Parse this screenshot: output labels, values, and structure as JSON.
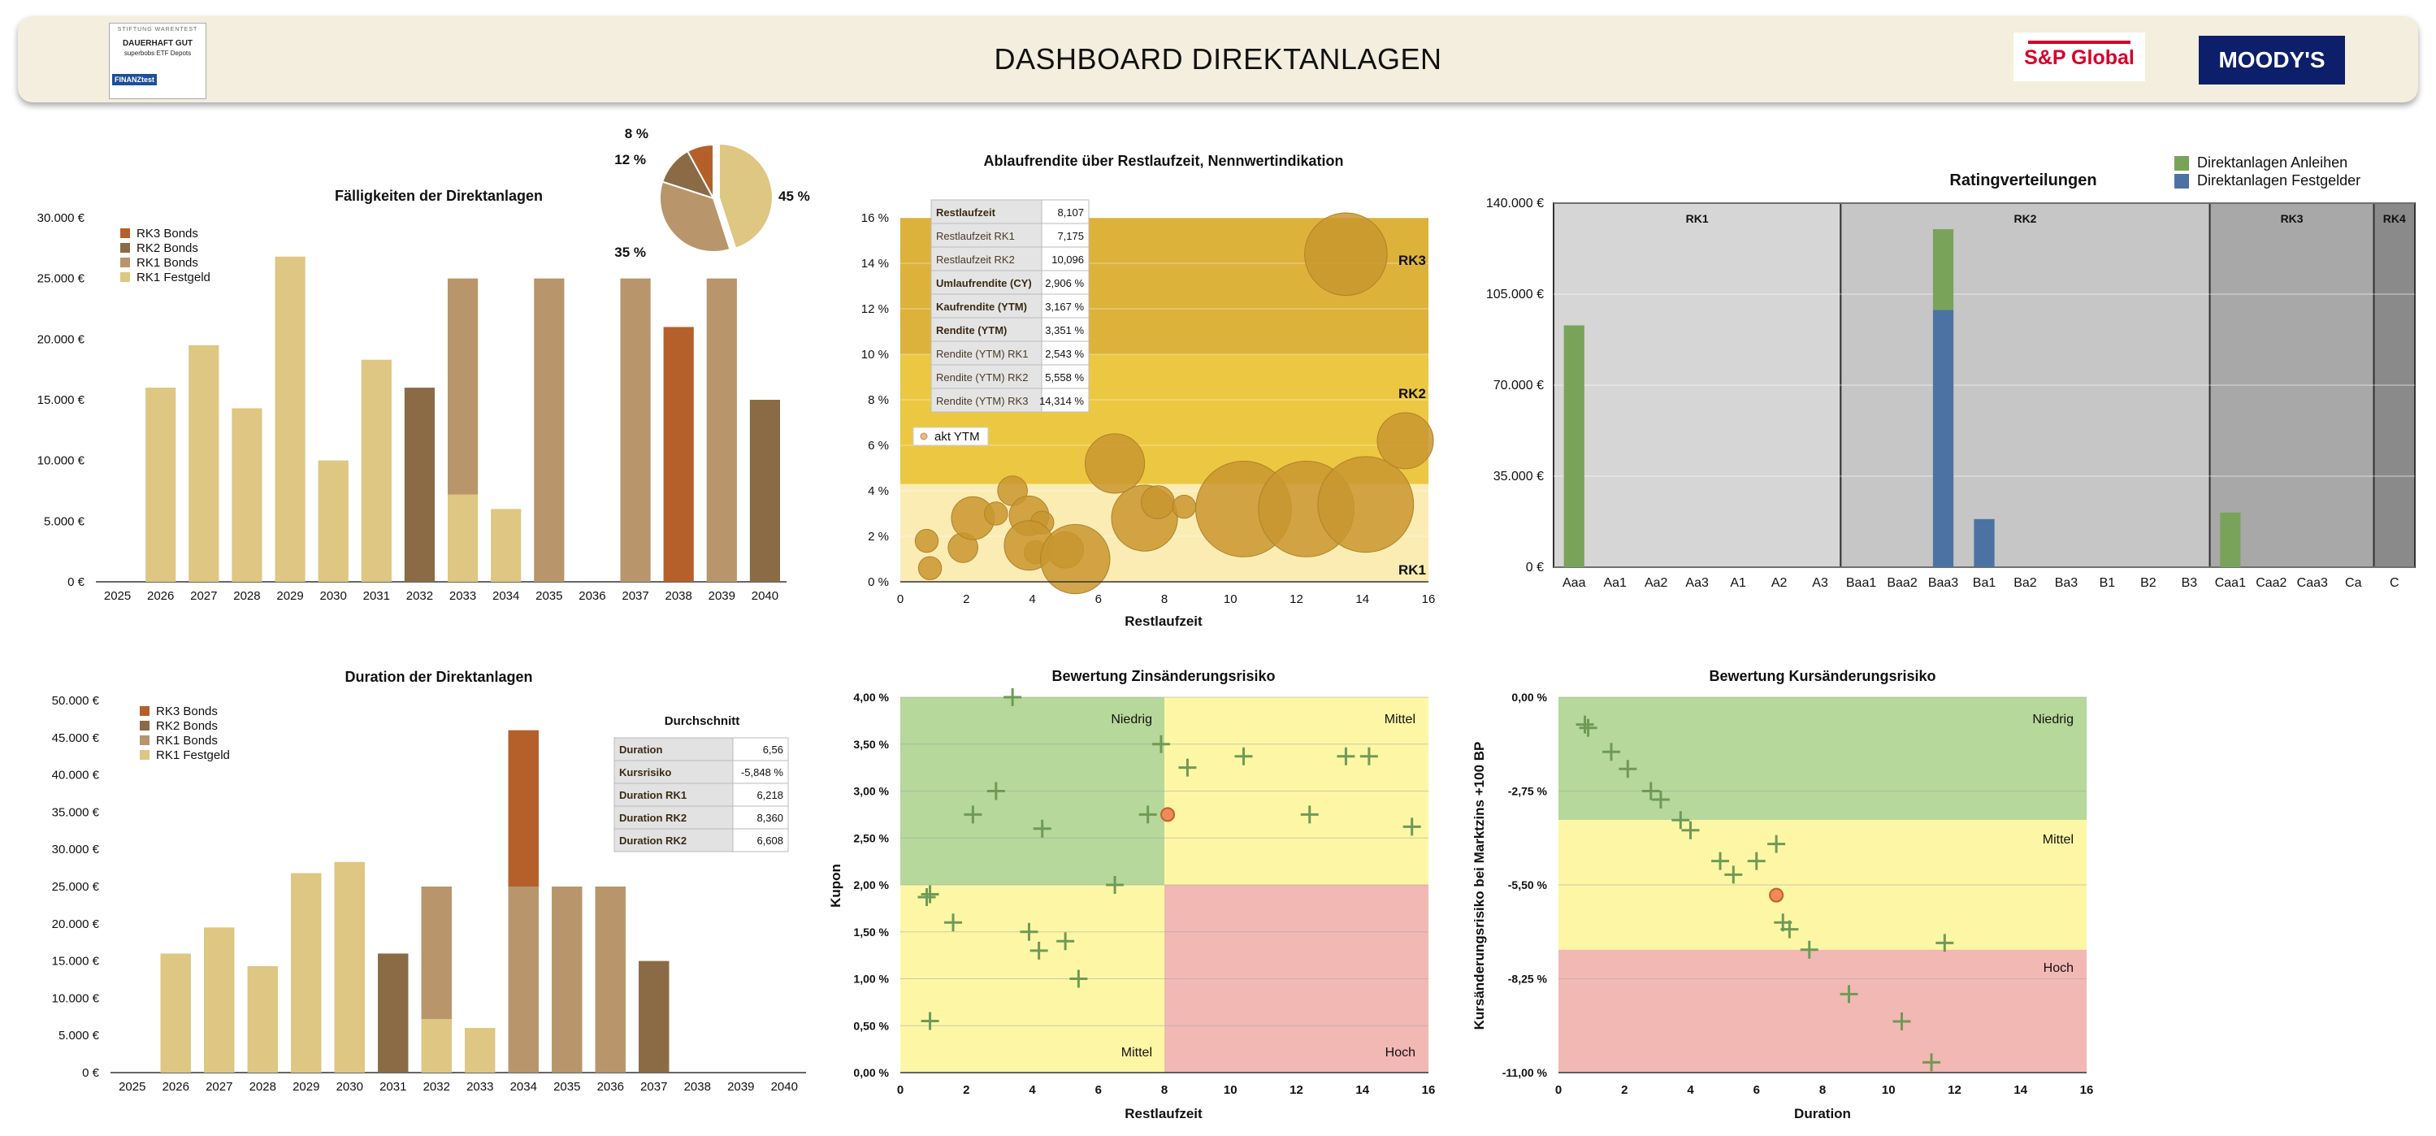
{
  "header": {
    "title": "DASHBOARD DIREKTANLAGEN",
    "logo_left": {
      "line1": "STIFTUNG WARENTEST",
      "line2": "DAUERHAFT GUT",
      "line3": "superbobs ETF Depots",
      "badge": "FINANZtest"
    },
    "logo_sp": "S&P Global",
    "logo_moodys": "MOODY'S"
  },
  "colors": {
    "rk3_bonds": "#b5602a",
    "rk2_bonds": "#8b6b45",
    "rk1_bonds": "#b8956a",
    "rk1_festgeld": "#dec683",
    "green": "#7aa35a",
    "blue": "#4b72a2",
    "zone_green": "#b6d89a",
    "zone_yellow": "#fdf7a5",
    "zone_red": "#f2b8b4"
  },
  "chart_data": [
    {
      "type": "bar",
      "title": "Fälligkeiten der Direktanlagen",
      "categories": [
        "2025",
        "2026",
        "2027",
        "2028",
        "2029",
        "2030",
        "2031",
        "2032",
        "2033",
        "2034",
        "2035",
        "2036",
        "2037",
        "2038",
        "2039",
        "2040"
      ],
      "series": [
        {
          "name": "RK1 Festgeld",
          "values": [
            0,
            16000,
            19500,
            14300,
            26800,
            10000,
            18300,
            0,
            7200,
            6000,
            0,
            0,
            0,
            0,
            0,
            0
          ]
        },
        {
          "name": "RK1 Bonds",
          "values": [
            0,
            0,
            0,
            0,
            0,
            0,
            0,
            0,
            17800,
            0,
            25000,
            0,
            25000,
            0,
            25000,
            0
          ]
        },
        {
          "name": "RK2 Bonds",
          "values": [
            0,
            0,
            0,
            0,
            0,
            0,
            0,
            16000,
            0,
            0,
            0,
            0,
            0,
            0,
            0,
            15000
          ]
        },
        {
          "name": "RK3 Bonds",
          "values": [
            0,
            0,
            0,
            0,
            0,
            0,
            0,
            0,
            0,
            0,
            0,
            0,
            0,
            21000,
            0,
            0
          ]
        }
      ],
      "legend": [
        "RK3 Bonds",
        "RK2 Bonds",
        "RK1 Bonds",
        "RK1 Festgeld"
      ],
      "ylim": [
        0,
        30000
      ],
      "yticks": [
        "0 €",
        "5.000 €",
        "10.000 €",
        "15.000 €",
        "20.000 €",
        "25.000 €",
        "30.000 €"
      ],
      "pie": {
        "values": [
          45,
          35,
          12,
          8
        ],
        "labels": [
          "45 %",
          "35 %",
          "12 %",
          "8 %"
        ]
      }
    },
    {
      "type": "scatter",
      "title": "Ablaufrendite über Restlaufzeit, Nennwertindikation",
      "xlabel": "Restlaufzeit",
      "xlim": [
        0,
        16
      ],
      "ylim": [
        0,
        16
      ],
      "xticks": [
        "0",
        "2",
        "4",
        "6",
        "8",
        "10",
        "12",
        "14",
        "16"
      ],
      "yticks": [
        "0 %",
        "2 %",
        "4 %",
        "6 %",
        "8 %",
        "10 %",
        "12 %",
        "14 %",
        "16 %"
      ],
      "bands": [
        {
          "label": "RK1",
          "from": 0,
          "to": 4.3
        },
        {
          "label": "RK2",
          "from": 4.3,
          "to": 10
        },
        {
          "label": "RK3",
          "from": 10,
          "to": 16
        }
      ],
      "bubbles": [
        {
          "x": 0.8,
          "y": 1.8,
          "s": 0.35
        },
        {
          "x": 0.9,
          "y": 0.6,
          "s": 0.35
        },
        {
          "x": 1.9,
          "y": 1.5,
          "s": 0.45
        },
        {
          "x": 2.2,
          "y": 2.8,
          "s": 0.65
        },
        {
          "x": 2.9,
          "y": 3.0,
          "s": 0.35
        },
        {
          "x": 3.4,
          "y": 4.0,
          "s": 0.45
        },
        {
          "x": 3.9,
          "y": 2.9,
          "s": 0.6
        },
        {
          "x": 4.1,
          "y": 1.3,
          "s": 0.35
        },
        {
          "x": 4.3,
          "y": 2.6,
          "s": 0.35
        },
        {
          "x": 3.9,
          "y": 1.6,
          "s": 0.75
        },
        {
          "x": 5.0,
          "y": 1.4,
          "s": 0.55
        },
        {
          "x": 5.3,
          "y": 1.0,
          "s": 1.05
        },
        {
          "x": 6.5,
          "y": 5.2,
          "s": 0.9
        },
        {
          "x": 7.4,
          "y": 2.8,
          "s": 1.0
        },
        {
          "x": 7.8,
          "y": 3.5,
          "s": 0.5
        },
        {
          "x": 8.6,
          "y": 3.3,
          "s": 0.35
        },
        {
          "x": 10.4,
          "y": 3.2,
          "s": 1.45
        },
        {
          "x": 12.3,
          "y": 3.2,
          "s": 1.45
        },
        {
          "x": 14.1,
          "y": 3.4,
          "s": 1.45
        },
        {
          "x": 15.3,
          "y": 6.2,
          "s": 0.85
        },
        {
          "x": 13.5,
          "y": 14.4,
          "s": 1.25
        }
      ],
      "akt_ytm": {
        "x": 8.1,
        "y": 3.35,
        "label": "akt YTM"
      },
      "info_table": [
        [
          "Restlaufzeit",
          "8,107"
        ],
        [
          "Restlaufzeit RK1",
          "7,175"
        ],
        [
          "Restlaufzeit RK2",
          "10,096"
        ],
        [
          "Umlaufrendite (CY)",
          "2,906 %"
        ],
        [
          "Kaufrendite (YTM)",
          "3,167 %"
        ],
        [
          "Rendite (YTM)",
          "3,351 %"
        ],
        [
          "Rendite (YTM) RK1",
          "2,543 %"
        ],
        [
          "Rendite (YTM) RK2",
          "5,558 %"
        ],
        [
          "Rendite (YTM) RK3",
          "14,314 %"
        ]
      ]
    },
    {
      "type": "bar",
      "title": "Ratingverteilungen",
      "categories": [
        "Aaa",
        "Aa1",
        "Aa2",
        "Aa3",
        "A1",
        "A2",
        "A3",
        "Baa1",
        "Baa2",
        "Baa3",
        "Ba1",
        "Ba2",
        "Ba3",
        "B1",
        "B2",
        "B3",
        "Caa1",
        "Caa2",
        "Caa3",
        "Ca",
        "C"
      ],
      "series": [
        {
          "name": "Direktanlagen Festgelder",
          "values": [
            0,
            0,
            0,
            0,
            0,
            0,
            0,
            0,
            0,
            99000,
            18500,
            0,
            0,
            0,
            0,
            0,
            0,
            0,
            0,
            0,
            0
          ]
        },
        {
          "name": "Direktanlagen Anleihen",
          "values": [
            93000,
            0,
            0,
            0,
            0,
            0,
            0,
            0,
            0,
            31000,
            0,
            0,
            0,
            0,
            0,
            0,
            21000,
            0,
            0,
            0,
            0
          ]
        }
      ],
      "groups": [
        {
          "label": "RK1",
          "from": 0,
          "to": 6
        },
        {
          "label": "RK2",
          "from": 7,
          "to": 15
        },
        {
          "label": "RK3",
          "from": 16,
          "to": 19
        },
        {
          "label": "RK4",
          "from": 20,
          "to": 20
        }
      ],
      "ylim": [
        0,
        140000
      ],
      "yticks": [
        "0 €",
        "35.000 €",
        "70.000 €",
        "105.000 €",
        "140.000 €"
      ],
      "legend": [
        "Direktanlagen Anleihen",
        "Direktanlagen Festgelder"
      ]
    },
    {
      "type": "bar",
      "title": "Duration der Direktanlagen",
      "categories": [
        "2025",
        "2026",
        "2027",
        "2028",
        "2029",
        "2030",
        "2031",
        "2032",
        "2033",
        "2034",
        "2035",
        "2036",
        "2037",
        "2038",
        "2039",
        "2040"
      ],
      "series": [
        {
          "name": "RK1 Festgeld",
          "values": [
            0,
            16000,
            19500,
            14300,
            26800,
            28300,
            0,
            7200,
            6000,
            0,
            0,
            0,
            0,
            0,
            0,
            0
          ]
        },
        {
          "name": "RK1 Bonds",
          "values": [
            0,
            0,
            0,
            0,
            0,
            0,
            0,
            17800,
            0,
            25000,
            25000,
            25000,
            0,
            0,
            0,
            0
          ]
        },
        {
          "name": "RK2 Bonds",
          "values": [
            0,
            0,
            0,
            0,
            0,
            0,
            16000,
            0,
            0,
            0,
            0,
            0,
            15000,
            0,
            0,
            0
          ]
        },
        {
          "name": "RK3 Bonds",
          "values": [
            0,
            0,
            0,
            0,
            0,
            0,
            0,
            0,
            0,
            21000,
            0,
            0,
            0,
            0,
            0,
            0
          ]
        }
      ],
      "legend": [
        "RK3 Bonds",
        "RK2 Bonds",
        "RK1 Bonds",
        "RK1 Festgeld"
      ],
      "ylim": [
        0,
        50000
      ],
      "yticks": [
        "0 €",
        "5.000 €",
        "10.000 €",
        "15.000 €",
        "20.000 €",
        "25.000 €",
        "30.000 €",
        "35.000 €",
        "40.000 €",
        "45.000 €",
        "50.000 €"
      ],
      "avg_title": "Durchschnitt",
      "avg_table": [
        [
          "Duration",
          "6,56"
        ],
        [
          "Kursrisiko",
          "-5,848 %"
        ],
        [
          "Duration RK1",
          "6,218"
        ],
        [
          "Duration RK2",
          "8,360"
        ],
        [
          "Duration RK2",
          "6,608"
        ]
      ]
    },
    {
      "type": "scatter",
      "title": "Bewertung Zinsänderungsrisiko",
      "xlabel": "Restlaufzeit",
      "ylabel": "Kupon",
      "xlim": [
        0,
        16
      ],
      "ylim": [
        0,
        4
      ],
      "xticks": [
        "0",
        "2",
        "4",
        "6",
        "8",
        "10",
        "12",
        "14",
        "16"
      ],
      "yticks": [
        "0,00 %",
        "0,50 %",
        "1,00 %",
        "1,50 %",
        "2,00 %",
        "2,50 %",
        "3,00 %",
        "3,50 %",
        "4,00 %"
      ],
      "zones": {
        "top_left": "Niedrig",
        "top_right": "Mittel",
        "bottom_left": "Mittel",
        "bottom_right": "Hoch"
      },
      "points": [
        {
          "x": 3.4,
          "y": 4.0
        },
        {
          "x": 7.9,
          "y": 3.5
        },
        {
          "x": 8.7,
          "y": 3.25
        },
        {
          "x": 10.4,
          "y": 3.37
        },
        {
          "x": 13.5,
          "y": 3.37
        },
        {
          "x": 14.2,
          "y": 3.37
        },
        {
          "x": 2.2,
          "y": 2.75
        },
        {
          "x": 2.9,
          "y": 3.0
        },
        {
          "x": 4.3,
          "y": 2.6
        },
        {
          "x": 7.5,
          "y": 2.75
        },
        {
          "x": 12.4,
          "y": 2.75
        },
        {
          "x": 15.5,
          "y": 2.62
        },
        {
          "x": 6.5,
          "y": 2.0
        },
        {
          "x": 0.9,
          "y": 1.9
        },
        {
          "x": 0.8,
          "y": 1.87
        },
        {
          "x": 1.6,
          "y": 1.6
        },
        {
          "x": 3.9,
          "y": 1.5
        },
        {
          "x": 4.2,
          "y": 1.3
        },
        {
          "x": 5.0,
          "y": 1.4
        },
        {
          "x": 5.4,
          "y": 1.0
        },
        {
          "x": 0.9,
          "y": 0.55
        }
      ],
      "highlight": {
        "x": 8.1,
        "y": 2.75
      }
    },
    {
      "type": "scatter",
      "title": "Bewertung Kursänderungsrisiko",
      "xlabel": "Duration",
      "ylabel": "Kursänderungsrisiko bei Marktzins +100 BP",
      "xlim": [
        0,
        16
      ],
      "ylim": [
        -11,
        0
      ],
      "xticks": [
        "0",
        "2",
        "4",
        "6",
        "8",
        "10",
        "12",
        "14",
        "16"
      ],
      "yticks": [
        "-11,00 %",
        "-8,25 %",
        "-5,50 %",
        "-2,75 %",
        "0,00 %"
      ],
      "zones": {
        "top": "Niedrig",
        "middle": "Mittel",
        "bottom": "Hoch"
      },
      "zone_bounds": [
        -3.6,
        -7.4
      ],
      "points": [
        {
          "x": 0.8,
          "y": -0.8
        },
        {
          "x": 0.9,
          "y": -0.9
        },
        {
          "x": 1.6,
          "y": -1.6
        },
        {
          "x": 2.1,
          "y": -2.1
        },
        {
          "x": 2.8,
          "y": -2.75
        },
        {
          "x": 3.1,
          "y": -3.0
        },
        {
          "x": 3.7,
          "y": -3.6
        },
        {
          "x": 4.0,
          "y": -3.9
        },
        {
          "x": 4.9,
          "y": -4.8
        },
        {
          "x": 5.3,
          "y": -5.2
        },
        {
          "x": 6.0,
          "y": -4.8
        },
        {
          "x": 6.6,
          "y": -4.3
        },
        {
          "x": 6.8,
          "y": -6.6
        },
        {
          "x": 7.0,
          "y": -6.8
        },
        {
          "x": 7.6,
          "y": -7.4
        },
        {
          "x": 8.8,
          "y": -8.7
        },
        {
          "x": 11.7,
          "y": -7.2
        },
        {
          "x": 10.4,
          "y": -9.5
        },
        {
          "x": 11.3,
          "y": -10.7
        }
      ],
      "highlight": {
        "x": 6.6,
        "y": -5.8
      }
    }
  ]
}
